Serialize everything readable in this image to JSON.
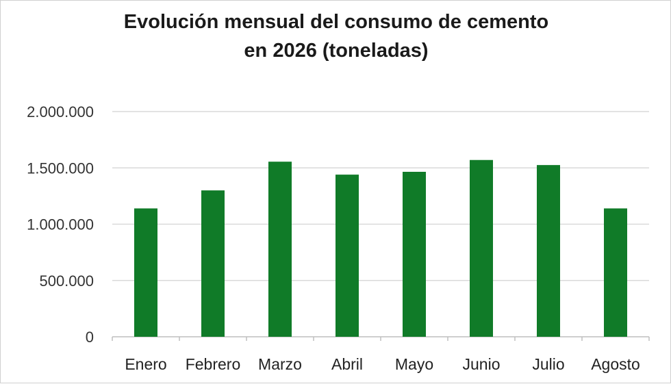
{
  "chart_data": {
    "type": "bar",
    "title_line1": "Evolución mensual del consumo de cemento",
    "title_line2": "en 2026 (toneladas)",
    "categories": [
      "Enero",
      "Febrero",
      "Marzo",
      "Abril",
      "Mayo",
      "Junio",
      "Julio",
      "Agosto"
    ],
    "values": [
      1140000,
      1300000,
      1555000,
      1440000,
      1465000,
      1570000,
      1525000,
      1140000
    ],
    "ylim": [
      0,
      2000000
    ],
    "yticks": [
      0,
      500000,
      1000000,
      1500000,
      2000000
    ],
    "ytick_labels": [
      "0",
      "500.000",
      "1.000.000",
      "1.500.000",
      "2.000.000"
    ],
    "grid": true,
    "bar_color": "#107b28",
    "grid_color": "#d9d9d9",
    "axis_color": "#bfbfbf"
  }
}
